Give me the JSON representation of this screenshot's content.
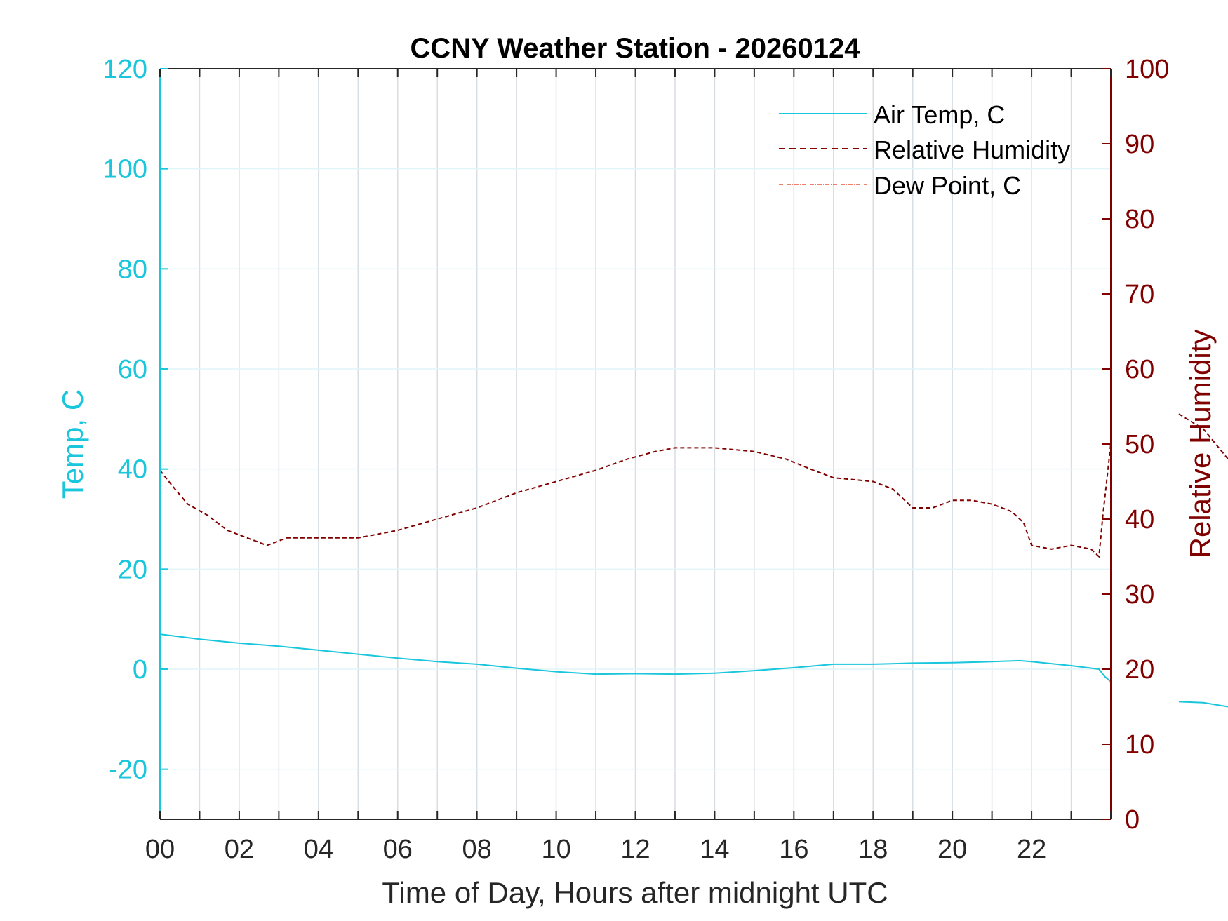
{
  "colors": {
    "temp": "#1ac6dc",
    "rh": "#800000",
    "dew": "#e8563f",
    "grid": "#d8dde2",
    "axis": "#262626",
    "text": "#262626"
  },
  "chart_data": {
    "type": "line",
    "title": "CCNY Weather Station - 20260124",
    "xlabel": "Time of Day, Hours after midnight UTC",
    "ylabel_left": "Temp, C",
    "ylabel_right": "Relative Humidity",
    "xlim": [
      0,
      24
    ],
    "ylim_left": [
      -30,
      120
    ],
    "ylim_right": [
      0,
      100
    ],
    "x_ticks": [
      0,
      2,
      4,
      6,
      8,
      10,
      12,
      14,
      16,
      18,
      20,
      22
    ],
    "x_tick_labels": [
      "00",
      "02",
      "04",
      "06",
      "08",
      "10",
      "12",
      "14",
      "16",
      "18",
      "20",
      "22"
    ],
    "y_left_ticks": [
      -20,
      0,
      20,
      40,
      60,
      80,
      100,
      120
    ],
    "y_left_tick_labels": [
      "-20",
      "0",
      "20",
      "40",
      "60",
      "80",
      "100",
      "120"
    ],
    "y_right_ticks": [
      0,
      10,
      20,
      30,
      40,
      50,
      60,
      70,
      80,
      90,
      100
    ],
    "y_right_tick_labels": [
      "0",
      "10",
      "20",
      "30",
      "40",
      "50",
      "60",
      "70",
      "80",
      "90",
      "100"
    ],
    "grid": true,
    "legend_position": "top-right",
    "series": [
      {
        "name": "Air Temp, C",
        "axis": "left",
        "style": "solid",
        "x": [
          0,
          0.5,
          1,
          2,
          3,
          4,
          5,
          6,
          7,
          8,
          9,
          10,
          11,
          12,
          13,
          14,
          15,
          16,
          17,
          18,
          19,
          20,
          21,
          21.7,
          22,
          23,
          23.7,
          23.85,
          24
        ],
        "values": [
          7,
          6.5,
          6,
          5.2,
          4.6,
          3.8,
          3,
          2.2,
          1.5,
          1,
          0.2,
          -0.5,
          -1,
          -0.9,
          -1,
          -0.8,
          -0.3,
          0.3,
          1,
          1,
          1.2,
          1.3,
          1.5,
          1.7,
          1.5,
          0.7,
          0,
          -1.5,
          -2.5
        ]
      },
      {
        "name": "Relative Humidity",
        "axis": "right",
        "style": "dashed",
        "x": [
          0,
          0.3,
          0.7,
          1.2,
          1.7,
          2.2,
          2.7,
          3.2,
          4,
          5,
          6,
          7,
          8,
          9,
          10,
          11,
          11.8,
          12.5,
          13,
          14,
          15,
          15.8,
          16.5,
          17,
          18,
          18.5,
          19,
          19.5,
          20,
          20.5,
          21,
          21.5,
          21.8,
          22,
          22.5,
          23,
          23.5,
          23.7,
          23.8,
          24
        ],
        "values": [
          46.5,
          44.5,
          42,
          40.5,
          38.5,
          37.5,
          36.5,
          37.5,
          37.5,
          37.5,
          38.5,
          40,
          41.5,
          43.5,
          45,
          46.5,
          48,
          49,
          49.5,
          49.5,
          49,
          48,
          46.5,
          45.5,
          45,
          44,
          41.5,
          41.5,
          42.5,
          42.5,
          42,
          41,
          39.5,
          36.5,
          36,
          36.5,
          36,
          35,
          40.5,
          50
        ]
      },
      {
        "name": "Dew Point, C",
        "axis": "left",
        "style": "dash-dot",
        "x": [],
        "values": []
      }
    ],
    "offplot_fragments": [
      {
        "series": "Air Temp, C",
        "values": [
          -6.5,
          -6.7,
          -7.5
        ]
      },
      {
        "series": "Relative Humidity",
        "values": [
          54,
          52,
          48
        ]
      }
    ]
  }
}
